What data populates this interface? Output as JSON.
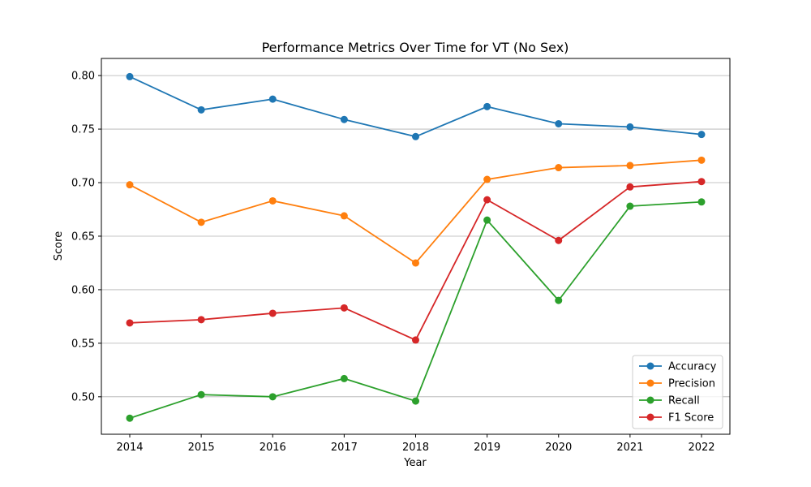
{
  "chart_data": {
    "type": "line",
    "title": "Performance Metrics Over Time for VT (No Sex)",
    "xlabel": "Year",
    "ylabel": "Score",
    "x": [
      2014,
      2015,
      2016,
      2017,
      2018,
      2019,
      2020,
      2021,
      2022
    ],
    "x_tick_labels": [
      "2014",
      "2015",
      "2016",
      "2017",
      "2018",
      "2019",
      "2020",
      "2021",
      "2022"
    ],
    "ylim": [
      0.465,
      0.816
    ],
    "y_ticks": [
      0.5,
      0.55,
      0.6,
      0.65,
      0.7,
      0.75,
      0.8
    ],
    "y_tick_labels": [
      "0.50",
      "0.55",
      "0.60",
      "0.65",
      "0.70",
      "0.75",
      "0.80"
    ],
    "grid": "horizontal",
    "legend_position": "lower-right",
    "series": [
      {
        "name": "Accuracy",
        "color": "#1f77b4",
        "values": [
          0.799,
          0.768,
          0.778,
          0.759,
          0.743,
          0.771,
          0.755,
          0.752,
          0.745
        ]
      },
      {
        "name": "Precision",
        "color": "#ff7f0e",
        "values": [
          0.698,
          0.663,
          0.683,
          0.669,
          0.625,
          0.703,
          0.714,
          0.716,
          0.721
        ]
      },
      {
        "name": "Recall",
        "color": "#2ca02c",
        "values": [
          0.48,
          0.502,
          0.5,
          0.517,
          0.496,
          0.665,
          0.59,
          0.678,
          0.682
        ]
      },
      {
        "name": "F1 Score",
        "color": "#d62728",
        "values": [
          0.569,
          0.572,
          0.578,
          0.583,
          0.553,
          0.684,
          0.646,
          0.696,
          0.701
        ]
      }
    ]
  }
}
